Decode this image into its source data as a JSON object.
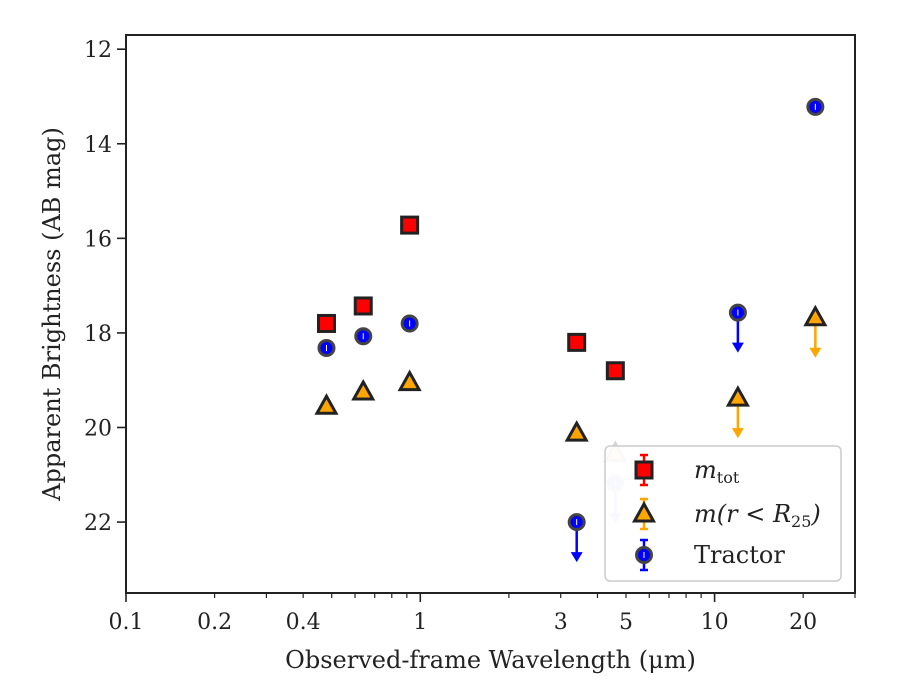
{
  "chart_data": {
    "type": "scatter",
    "xlabel": "Observed-frame Wavelength (μm)",
    "ylabel": "Apparent Brightness (AB mag)",
    "x_scale": "log",
    "xlim": [
      0.1,
      30
    ],
    "ylim": [
      23.5,
      11.7
    ],
    "y_inverted": true,
    "grid": false,
    "legend_position": "lower-right",
    "x_major_ticks": [
      0.1,
      1,
      10
    ],
    "x_minor_ticks": [
      0.2,
      0.3,
      0.4,
      0.5,
      0.6,
      0.7,
      0.8,
      0.9,
      2,
      3,
      4,
      5,
      6,
      7,
      8,
      9,
      20,
      30
    ],
    "x_tick_labels": [
      {
        "value": 0.1,
        "label": "0.1"
      },
      {
        "value": 0.2,
        "label": "0.2"
      },
      {
        "value": 0.4,
        "label": "0.4"
      },
      {
        "value": 1,
        "label": "1"
      },
      {
        "value": 3,
        "label": "3"
      },
      {
        "value": 5,
        "label": "5"
      },
      {
        "value": 10,
        "label": "10"
      },
      {
        "value": 20,
        "label": "20"
      }
    ],
    "y_ticks": [
      12,
      14,
      16,
      18,
      20,
      22
    ],
    "series": [
      {
        "name": "m_tot",
        "legend_label": "m",
        "legend_sub": "tot",
        "marker": "square",
        "color": "#ff0000",
        "points": [
          {
            "x": 0.48,
            "y": 17.8,
            "upper_limit": false
          },
          {
            "x": 0.64,
            "y": 17.43,
            "upper_limit": false
          },
          {
            "x": 0.92,
            "y": 15.72,
            "upper_limit": false
          },
          {
            "x": 3.4,
            "y": 18.2,
            "upper_limit": false
          },
          {
            "x": 4.6,
            "y": 18.8,
            "upper_limit": false
          }
        ]
      },
      {
        "name": "m(r < R25)",
        "legend_label": "m(r < R",
        "legend_sub": "25",
        "legend_close": ")",
        "marker": "triangle",
        "color": "#ffa500",
        "points": [
          {
            "x": 0.48,
            "y": 19.55,
            "upper_limit": false
          },
          {
            "x": 0.64,
            "y": 19.25,
            "upper_limit": false
          },
          {
            "x": 0.92,
            "y": 19.05,
            "upper_limit": false
          },
          {
            "x": 3.4,
            "y": 20.12,
            "upper_limit": false
          },
          {
            "x": 4.6,
            "y": 20.55,
            "upper_limit": false
          },
          {
            "x": 12.0,
            "y": 19.38,
            "upper_limit": true
          },
          {
            "x": 22.0,
            "y": 17.68,
            "upper_limit": true
          }
        ]
      },
      {
        "name": "Tractor",
        "legend_label": "Tractor",
        "marker": "circle",
        "color": "#0000ff",
        "points": [
          {
            "x": 0.48,
            "y": 18.32,
            "upper_limit": false
          },
          {
            "x": 0.64,
            "y": 18.07,
            "upper_limit": false
          },
          {
            "x": 0.92,
            "y": 17.8,
            "upper_limit": false
          },
          {
            "x": 3.4,
            "y": 22.0,
            "upper_limit": true
          },
          {
            "x": 4.6,
            "y": 21.18,
            "upper_limit": true
          },
          {
            "x": 12.0,
            "y": 17.57,
            "upper_limit": true
          },
          {
            "x": 22.0,
            "y": 13.22,
            "upper_limit": false
          }
        ]
      }
    ]
  }
}
